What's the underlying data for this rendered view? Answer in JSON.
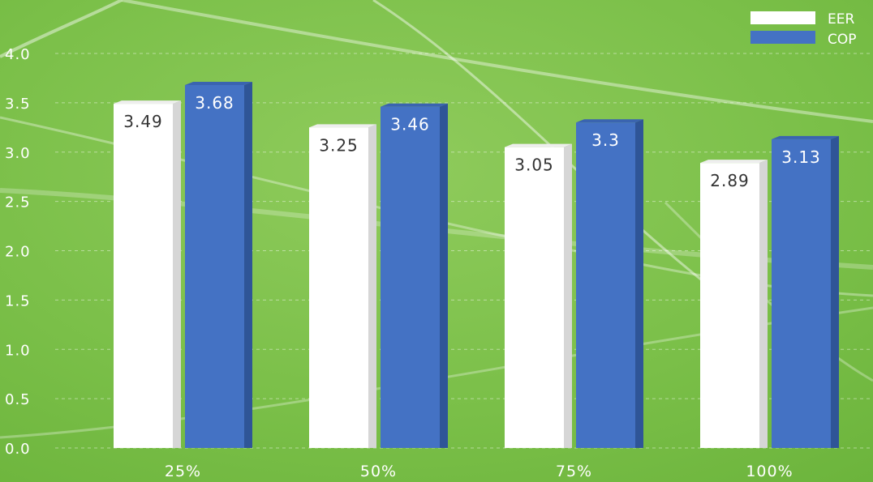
{
  "chart_data": {
    "type": "bar",
    "categories": [
      "25%",
      "50%",
      "75%",
      "100%"
    ],
    "series": [
      {
        "name": "EER",
        "values": [
          3.49,
          3.25,
          3.05,
          2.89
        ],
        "color": "#ffffff"
      },
      {
        "name": "COP",
        "values": [
          3.68,
          3.46,
          3.3,
          3.13
        ],
        "color": "#4472c4"
      }
    ],
    "value_labels": {
      "EER": [
        "3.49",
        "3.25",
        "3.05",
        "2.89"
      ],
      "COP": [
        "3.68",
        "3.46",
        "3.3",
        "3.13"
      ]
    },
    "y_ticks": [
      "0.0",
      "0.5",
      "1.0",
      "1.5",
      "2.0",
      "2.5",
      "3.0",
      "3.5",
      "4.0"
    ],
    "ylim": [
      0,
      4
    ],
    "title": "",
    "xlabel": "",
    "ylabel": "",
    "grid": true,
    "legend_position": "top-right",
    "background_color": "#7cbf4a"
  }
}
